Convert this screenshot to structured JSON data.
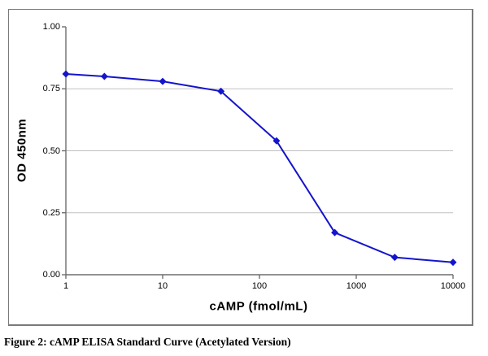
{
  "caption": "Figure 2: cAMP ELISA Standard Curve (Acetylated Version)",
  "colors": {
    "line": "#1414cc",
    "marker": "#1414cc",
    "gridline": "#c0c0c0",
    "axis": "#6e6e6e",
    "frame_border": "#7a7a7a",
    "background": "#ffffff",
    "text": "#000000"
  },
  "chart_data": {
    "type": "line",
    "title": "",
    "xlabel": "cAMP (fmol/mL)",
    "ylabel": "OD 450nm",
    "x_scale": "log",
    "xlim": [
      1,
      10000
    ],
    "ylim": [
      0.0,
      1.0
    ],
    "x": [
      1,
      2.5,
      10,
      40,
      150,
      600,
      2500,
      10000
    ],
    "y": [
      0.81,
      0.8,
      0.78,
      0.74,
      0.54,
      0.17,
      0.07,
      0.05
    ],
    "xticks": {
      "values": [
        1,
        10,
        100,
        1000,
        10000
      ],
      "labels": [
        "1",
        "10",
        "100",
        "1000",
        "10000"
      ]
    },
    "yticks": {
      "values": [
        0.0,
        0.25,
        0.5,
        0.75,
        1.0
      ],
      "labels": [
        "0.00",
        "0.25",
        "0.50",
        "0.75",
        "1.00"
      ]
    },
    "gridlines_y": [
      0.25,
      0.5,
      0.75
    ],
    "grid": "horizontal-only",
    "legend": "none",
    "marker": "diamond"
  }
}
